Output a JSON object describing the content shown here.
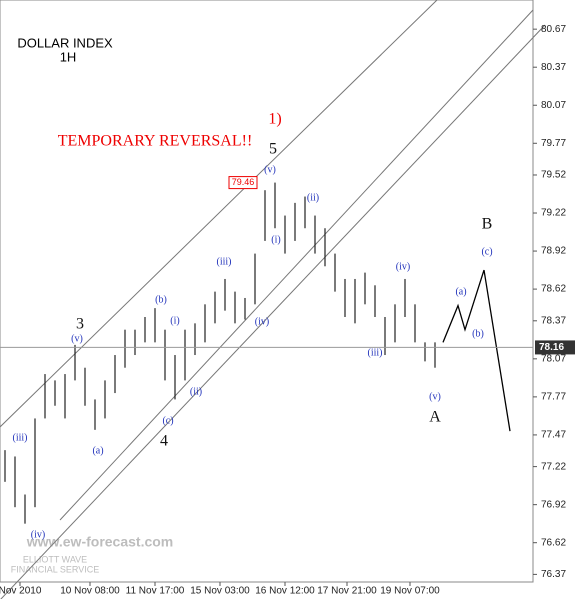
{
  "chart_data": {
    "type": "ohlc",
    "title": "DOLLAR INDEX",
    "subtitle": "1H",
    "annotation": "TEMPORARY REVERSAL!!",
    "xtick_labels": [
      "Nov 2010",
      "10 Nov 08:00",
      "11 Nov 17:00",
      "15 Nov 03:00",
      "16 Nov 12:00",
      "17 Nov 21:00",
      "19 Nov 07:00"
    ],
    "ylim": [
      76.31,
      80.9
    ],
    "yticks": [
      80.67,
      80.37,
      80.07,
      79.77,
      79.52,
      79.22,
      78.92,
      78.62,
      78.37,
      78.07,
      77.77,
      77.47,
      77.22,
      76.92,
      76.62,
      76.37
    ],
    "last_value": 78.16,
    "peak_label": 79.46,
    "series": [
      {
        "name": "high",
        "color": "#222222",
        "values": [
          77.35,
          77.3,
          77.0,
          77.6,
          77.95,
          77.9,
          77.95,
          78.18,
          78.0,
          77.75,
          77.9,
          78.1,
          78.3,
          78.3,
          78.4,
          78.47,
          78.3,
          78.1,
          78.3,
          78.35,
          78.5,
          78.6,
          78.7,
          78.6,
          78.55,
          78.9,
          79.4,
          79.46,
          79.2,
          79.3,
          79.35,
          79.2,
          79.1,
          78.9,
          78.7,
          78.7,
          78.75,
          78.65,
          78.4,
          78.5,
          78.7,
          78.5,
          78.2,
          78.2
        ]
      },
      {
        "name": "low",
        "color": "#222222",
        "values": [
          77.1,
          76.9,
          76.77,
          76.9,
          77.6,
          77.7,
          77.6,
          77.9,
          77.7,
          77.51,
          77.6,
          77.8,
          78.0,
          78.1,
          78.2,
          78.2,
          77.9,
          77.75,
          77.9,
          78.1,
          78.2,
          78.35,
          78.45,
          78.35,
          78.38,
          78.5,
          79.0,
          79.1,
          78.9,
          79.0,
          79.1,
          78.9,
          78.8,
          78.6,
          78.4,
          78.35,
          78.5,
          78.4,
          78.1,
          78.2,
          78.4,
          78.2,
          78.05,
          78.0
        ]
      },
      {
        "name": "projection",
        "color": "#000000",
        "x": [
          43.8,
          45.3,
          46,
          47.9,
          50.5
        ],
        "values": [
          78.2,
          78.49,
          78.3,
          78.77,
          77.5
        ]
      }
    ],
    "wave_labels": [
      "(iii)",
      "(iv)",
      "(v)",
      "(b)",
      "(a)",
      "(i)",
      "(c)",
      "(ii)",
      "(iii)",
      "(iv)",
      "(v)",
      "(i)",
      "(ii)",
      "(iii)",
      "(iv)",
      "(v)",
      "(a)",
      "(b)",
      "(c)"
    ],
    "major_labels": [
      "3",
      "4",
      "5",
      "A",
      "B",
      "1)"
    ],
    "watermark": [
      "www.ew-forecast.com",
      "ELLIOTT WAVE",
      "FINANCIAL SERVICE"
    ]
  }
}
